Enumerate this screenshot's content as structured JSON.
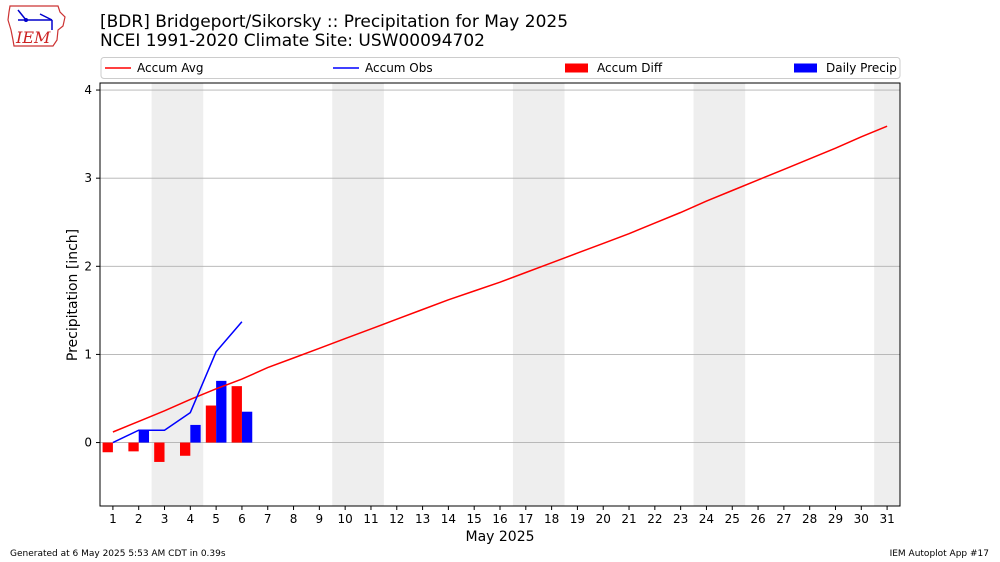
{
  "title_line1": "[BDR] Bridgeport/Sikorsky :: Precipitation for May 2025",
  "title_line2": "NCEI 1991-2020 Climate Site: USW00094702",
  "footer_left": "Generated at 6 May 2025 5:53 AM CDT in 0.39s",
  "footer_right": "IEM Autoplot App #17",
  "logo_text": "IEM",
  "colors": {
    "avg": "#ff0000",
    "obs": "#0000ff",
    "diff": "#ff0000",
    "daily": "#0000ff",
    "weekend": "#eeeeee",
    "grid": "#b0b0b0"
  },
  "chart_data": {
    "type": "line",
    "title": "[BDR] Bridgeport/Sikorsky :: Precipitation for May 2025",
    "xlabel": "May 2025",
    "ylabel": "Precipitation [inch]",
    "xlim": [
      0.5,
      31.5
    ],
    "ylim": [
      -0.72,
      4.08
    ],
    "xticks": [
      "1",
      "2",
      "3",
      "4",
      "5",
      "6",
      "7",
      "8",
      "9",
      "10",
      "11",
      "12",
      "13",
      "14",
      "15",
      "16",
      "17",
      "18",
      "19",
      "20",
      "21",
      "22",
      "23",
      "24",
      "25",
      "26",
      "27",
      "28",
      "29",
      "30",
      "31"
    ],
    "yticks": [
      0,
      1,
      2,
      3,
      4
    ],
    "grid": "horizontal",
    "legend_position": "top",
    "shaded_weekend_days": [
      [
        3,
        4
      ],
      [
        10,
        11
      ],
      [
        17,
        18
      ],
      [
        24,
        25
      ],
      [
        31
      ]
    ],
    "series": [
      {
        "name": "Accum Avg",
        "kind": "line",
        "x": [
          1,
          2,
          3,
          4,
          5,
          6,
          7,
          8,
          9,
          10,
          11,
          12,
          13,
          14,
          15,
          16,
          17,
          18,
          19,
          20,
          21,
          22,
          23,
          24,
          25,
          26,
          27,
          28,
          29,
          30,
          31
        ],
        "values": [
          0.12,
          0.24,
          0.36,
          0.49,
          0.61,
          0.72,
          0.85,
          0.96,
          1.07,
          1.18,
          1.29,
          1.4,
          1.51,
          1.62,
          1.72,
          1.82,
          1.93,
          2.04,
          2.15,
          2.26,
          2.37,
          2.49,
          2.61,
          2.74,
          2.86,
          2.98,
          3.1,
          3.22,
          3.34,
          3.47,
          3.59
        ]
      },
      {
        "name": "Accum Obs",
        "kind": "line",
        "x": [
          1,
          2,
          3,
          4,
          5,
          6
        ],
        "values": [
          0.0,
          0.14,
          0.14,
          0.34,
          1.03,
          1.37
        ]
      },
      {
        "name": "Accum Diff",
        "kind": "bar",
        "x": [
          1,
          2,
          3,
          4,
          5,
          6
        ],
        "values": [
          -0.11,
          -0.1,
          -0.22,
          -0.15,
          0.42,
          0.64
        ]
      },
      {
        "name": "Daily Precip",
        "kind": "bar",
        "x": [
          1,
          2,
          3,
          4,
          5,
          6
        ],
        "values": [
          0.0,
          0.14,
          0.0,
          0.2,
          0.7,
          0.35
        ]
      }
    ]
  }
}
